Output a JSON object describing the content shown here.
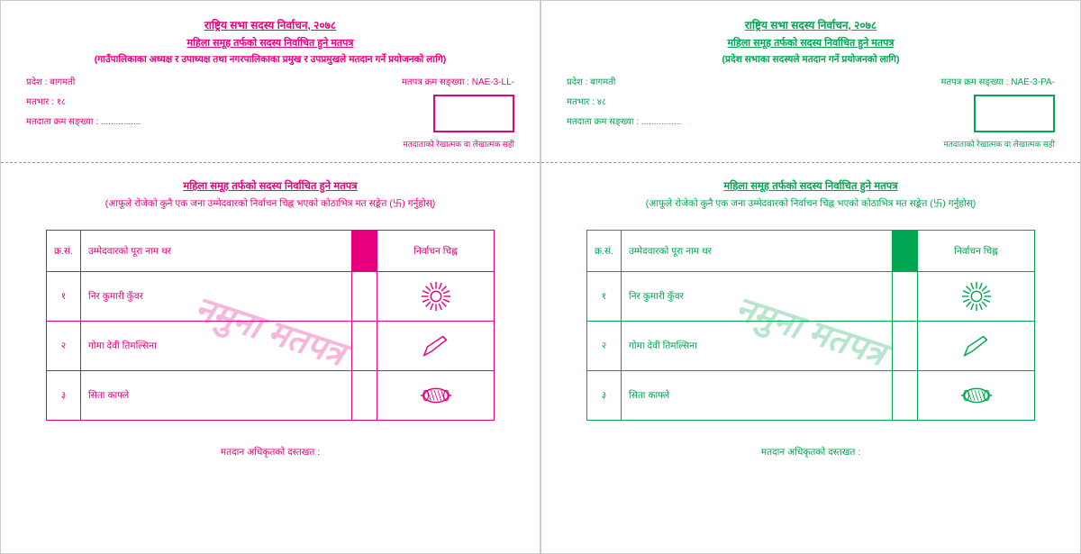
{
  "ballots": [
    {
      "colorClass": "pink",
      "color": "#e6007e",
      "header": {
        "line1": "राष्ट्रिय सभा सदस्य निर्वाचन, २०७८",
        "line2": "महिला समूह तर्फको सदस्य निर्वाचित हुने मतपत्र",
        "line3": "(गाउँपालिकाका अध्यक्ष र उपाध्यक्ष तथा नगरपालिकाका प्रमुख र उपप्रमुखले मतदान गर्ने प्रयोजनको लागि)"
      },
      "pradesh_label": "प्रदेश :",
      "pradesh_value": "बागमती",
      "matbhar_label": "मतभार :",
      "matbhar_value": "१८",
      "voter_sn_label": "मतदाता क्रम सङ्ख्या :",
      "voter_sn_value": "................",
      "ballot_sn_label": "मतपत्र क्रम सङ्ख्या :",
      "ballot_sn_value": "NAE-3-LL-",
      "sign_label": "मतदाताको रेखात्मक वा लेखात्मक सही",
      "subhead": "महिला समूह तर्फको सदस्य निर्वाचित हुने मतपत्र",
      "instruction": "(आफूले रोजेको कुनै एक जना उम्मेदवारको निर्वाचन चिह्न भएको कोठाभित्र मत सङ्केत (卐) गर्नुहोस्)",
      "col_sn": "क्र.सं.",
      "col_name": "उम्मेदवारको पूरा नाम थर",
      "col_symbol": "निर्वाचन चिह्न",
      "candidates": [
        {
          "sn": "१",
          "name": "निर कुमारी कुँवर",
          "symbol": "sun"
        },
        {
          "sn": "२",
          "name": "गोमा देवी तिमल्सिना",
          "symbol": "pen"
        },
        {
          "sn": "३",
          "name": "सिता काफ्ले",
          "symbol": "drum"
        }
      ],
      "watermark": "नमुना मतपत्र",
      "footer": "मतदान अधिकृतको दस्तखत :"
    },
    {
      "colorClass": "green",
      "color": "#00a651",
      "header": {
        "line1": "राष्ट्रिय सभा सदस्य निर्वाचन, २०७८",
        "line2": "महिला समूह तर्फको सदस्य निर्वाचित हुने मतपत्र",
        "line3": "(प्रदेश सभाका सदस्यले मतदान गर्ने प्रयोजनको लागि)"
      },
      "pradesh_label": "प्रदेश :",
      "pradesh_value": "बागमती",
      "matbhar_label": "मतभार :",
      "matbhar_value": "४८",
      "voter_sn_label": "मतदाता क्रम सङ्ख्या :",
      "voter_sn_value": "................",
      "ballot_sn_label": "मतपत्र क्रम सङ्ख्या :",
      "ballot_sn_value": "NAE-3-PA-",
      "sign_label": "मतदाताको रेखात्मक वा लेखात्मक सही",
      "subhead": "महिला समूह तर्फको सदस्य निर्वाचित हुने मतपत्र",
      "instruction": "(आफूले रोजेको कुनै एक जना उम्मेदवारको निर्वाचन चिह्न भएको कोठाभित्र मत सङ्केत (卐) गर्नुहोस्)",
      "col_sn": "क्र.सं.",
      "col_name": "उम्मेदवारको पूरा नाम थर",
      "col_symbol": "निर्वाचन चिह्न",
      "candidates": [
        {
          "sn": "१",
          "name": "निर कुमारी कुँवर",
          "symbol": "sun"
        },
        {
          "sn": "२",
          "name": "गोमा देवी तिमल्सिना",
          "symbol": "pen"
        },
        {
          "sn": "३",
          "name": "सिता काफ्ले",
          "symbol": "drum"
        }
      ],
      "watermark": "नमुना मतपत्र",
      "footer": "मतदान अधिकृतको दस्तखत :"
    }
  ]
}
